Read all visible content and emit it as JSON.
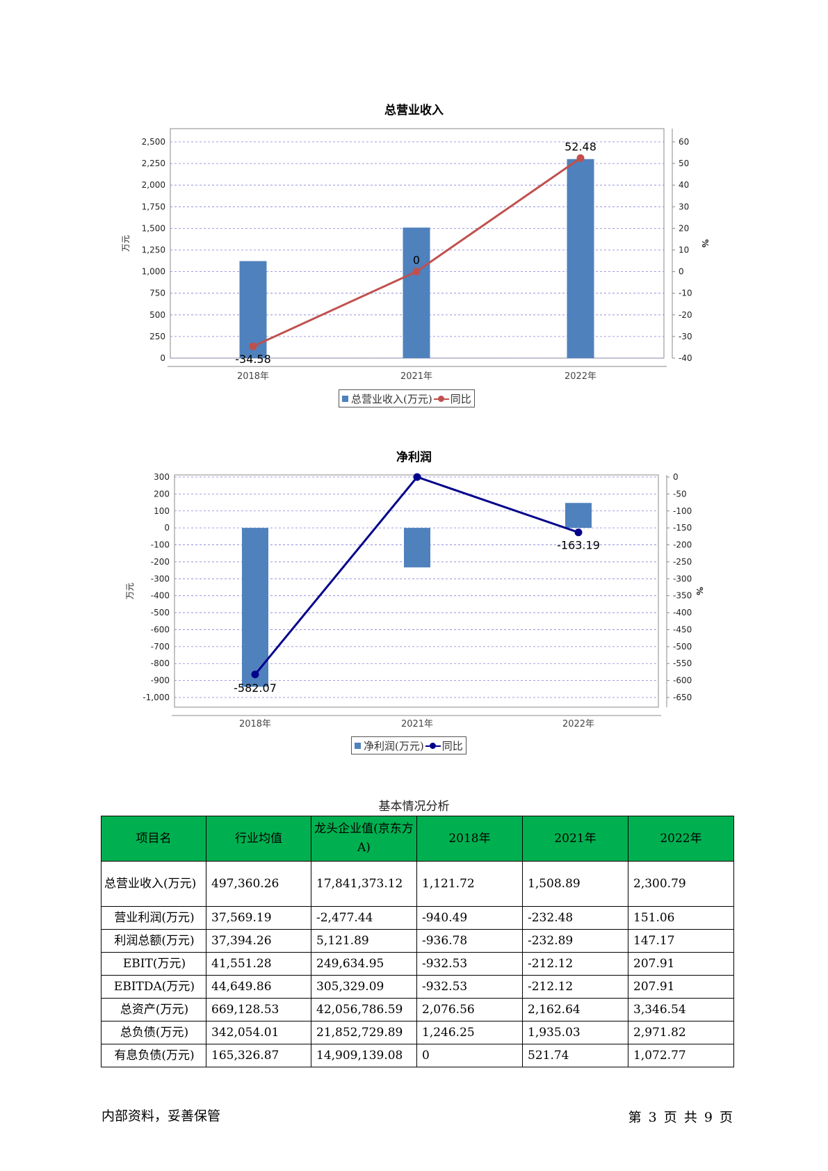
{
  "charts": [
    {
      "title": "总营业收入",
      "ylabel_left": "万元",
      "ylabel_right": "%",
      "legend": {
        "bar_label": "总营业收入(万元)",
        "line_label": "同比",
        "line_color": "#c0504d",
        "bar_color": "#4f81bd"
      },
      "left_ticks": [
        "2,500",
        "2,250",
        "2,000",
        "1,750",
        "1,500",
        "1,250",
        "1,000",
        "750",
        "500",
        "250",
        "0"
      ],
      "right_ticks": [
        "60",
        "50",
        "40",
        "30",
        "20",
        "10",
        "0",
        "-10",
        "-20",
        "-30",
        "-40"
      ]
    },
    {
      "title": "净利润",
      "ylabel_left": "万元",
      "ylabel_right": "%",
      "legend": {
        "bar_label": "净利润(万元)",
        "line_label": "同比",
        "line_color": "#00008b",
        "bar_color": "#4f81bd"
      },
      "left_ticks": [
        "300",
        "200",
        "100",
        "0",
        "-100",
        "-200",
        "-300",
        "-400",
        "-500",
        "-600",
        "-700",
        "-800",
        "-900",
        "-1,000"
      ],
      "right_ticks": [
        "0",
        "-50",
        "-100",
        "-150",
        "-200",
        "-250",
        "-300",
        "-350",
        "-400",
        "-450",
        "-500",
        "-550",
        "-600",
        "-650"
      ]
    }
  ],
  "chart_data": [
    {
      "type": "bar",
      "title": "总营业收入",
      "categories": [
        "2018年",
        "2021年",
        "2022年"
      ],
      "series": [
        {
          "name": "总营业收入(万元)",
          "type": "bar",
          "axis": "left",
          "values": [
            1121.72,
            1508.89,
            2300.79
          ]
        },
        {
          "name": "同比",
          "type": "line",
          "axis": "right",
          "values": [
            -34.58,
            0,
            52.48
          ],
          "labels": [
            "-34.58",
            "0",
            "52.48"
          ]
        }
      ],
      "ylabel": "万元",
      "ylabel_right": "%",
      "ylim": [
        0,
        2500
      ],
      "ylim_right": [
        -40,
        60
      ],
      "grid": true,
      "legend_position": "bottom"
    },
    {
      "type": "bar",
      "title": "净利润",
      "categories": [
        "2018年",
        "2021年",
        "2022年"
      ],
      "series": [
        {
          "name": "净利润(万元)",
          "type": "bar",
          "axis": "left",
          "values": [
            -936.78,
            -232.89,
            147.17
          ]
        },
        {
          "name": "同比",
          "type": "line",
          "axis": "right",
          "values": [
            -582.07,
            0,
            -163.19
          ],
          "labels": [
            "-582.07",
            "",
            "-163.19"
          ]
        }
      ],
      "ylabel": "万元",
      "ylabel_right": "%",
      "ylim": [
        -1000,
        300
      ],
      "ylim_right": [
        -650,
        0
      ],
      "grid": true,
      "legend_position": "bottom"
    }
  ],
  "table": {
    "caption": "基本情况分析",
    "headers": [
      "项目名",
      "行业均值",
      "龙头企业值(京东方A)",
      "2018年",
      "2021年",
      "2022年"
    ],
    "rows": [
      [
        "总营业收入(万元)",
        "497,360.26",
        "17,841,373.12",
        "1,121.72",
        "1,508.89",
        "2,300.79"
      ],
      [
        "营业利润(万元)",
        "37,569.19",
        "-2,477.44",
        "-940.49",
        "-232.48",
        "151.06"
      ],
      [
        "利润总额(万元)",
        "37,394.26",
        "5,121.89",
        "-936.78",
        "-232.89",
        "147.17"
      ],
      [
        "EBIT(万元)",
        "41,551.28",
        "249,634.95",
        "-932.53",
        "-212.12",
        "207.91"
      ],
      [
        "EBITDA(万元)",
        "44,649.86",
        "305,329.09",
        "-932.53",
        "-212.12",
        "207.91"
      ],
      [
        "总资产(万元)",
        "669,128.53",
        "42,056,786.59",
        "2,076.56",
        "2,162.64",
        "3,346.54"
      ],
      [
        "总负债(万元)",
        "342,054.01",
        "21,852,729.89",
        "1,246.25",
        "1,935.03",
        "2,971.82"
      ],
      [
        "有息负债(万元)",
        "165,326.87",
        "14,909,139.08",
        "0",
        "521.74",
        "1,072.77"
      ]
    ]
  },
  "footer": {
    "left": "内部资料，妥善保管",
    "right": "第 3 页  共 9 页"
  }
}
